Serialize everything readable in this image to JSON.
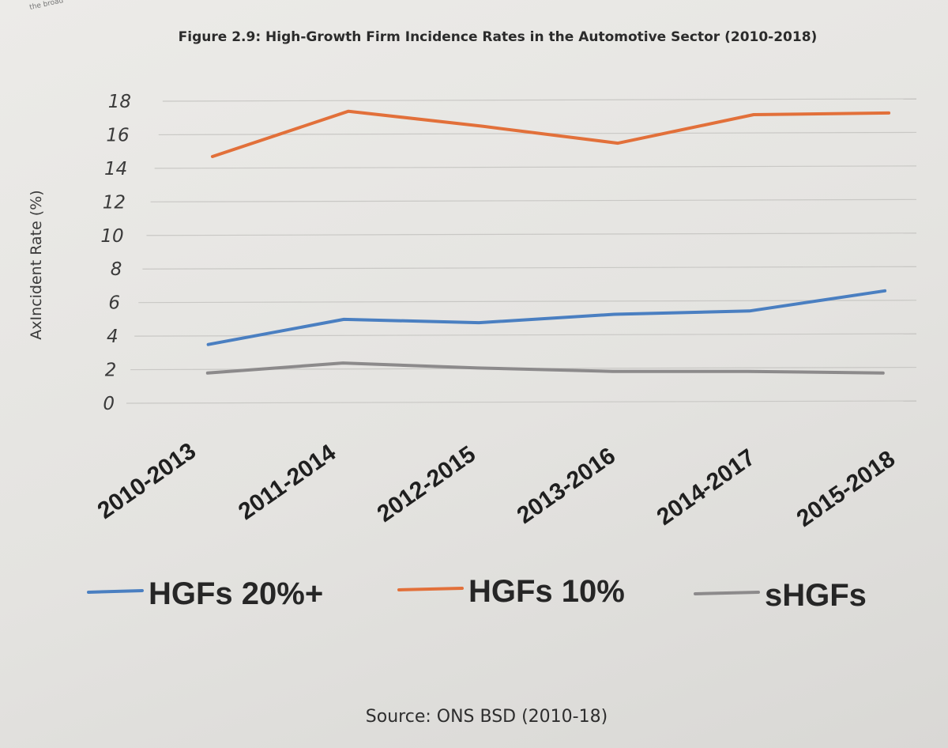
{
  "chart_data": {
    "type": "line",
    "title": "Figure 2.9: High-Growth Firm Incidence Rates in the Automotive Sector (2010-2018)",
    "ylabel": "AxIncident Rate (%)",
    "xlabel": "",
    "categories": [
      "2010-2013",
      "2011-2014",
      "2012-2015",
      "2013-2016",
      "2014-2017",
      "2015-2018"
    ],
    "yticks": [
      0,
      2,
      4,
      6,
      8,
      10,
      12,
      14,
      16,
      18
    ],
    "ylim": [
      0,
      18
    ],
    "grid": true,
    "legend_position": "bottom",
    "series": [
      {
        "name": "HGFs 20%+",
        "color": "#4a7fc1",
        "values": [
          3.5,
          5.0,
          4.8,
          5.3,
          5.5,
          6.7
        ]
      },
      {
        "name": "HGFs 10%",
        "color": "#e2703a",
        "values": [
          14.7,
          17.4,
          16.5,
          15.5,
          17.2,
          17.3
        ]
      },
      {
        "name": "sHGFs",
        "color": "#8c8a8b",
        "values": [
          1.8,
          2.4,
          2.1,
          1.9,
          1.9,
          1.8
        ]
      }
    ],
    "source": "Source: ONS BSD (2010-18)"
  }
}
